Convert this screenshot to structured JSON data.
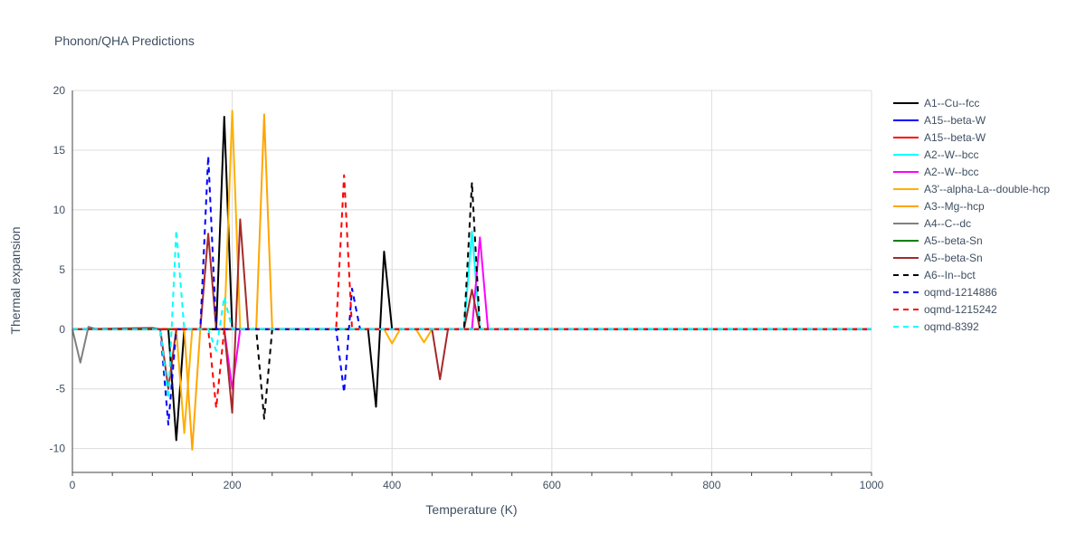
{
  "chart_data": {
    "type": "line",
    "title": "Phonon/QHA Predictions",
    "xlabel": "Temperature (K)",
    "ylabel": "Thermal expansion",
    "xlim": [
      0,
      1000
    ],
    "ylim": [
      -12,
      20
    ],
    "xticks": [
      0,
      200,
      400,
      600,
      800,
      1000
    ],
    "yticks": [
      -10,
      -5,
      0,
      5,
      10,
      15,
      20
    ],
    "grid": true,
    "legend_position": "right",
    "series": [
      {
        "name": "A1--Cu--fcc",
        "color": "#000000",
        "dash": "solid",
        "points": [
          [
            0,
            0
          ],
          [
            120,
            0
          ],
          [
            130,
            -9.3
          ],
          [
            140,
            0
          ],
          [
            180,
            0
          ],
          [
            190,
            17.8
          ],
          [
            200,
            0
          ],
          [
            370,
            0
          ],
          [
            380,
            -6.5
          ],
          [
            390,
            6.5
          ],
          [
            400,
            0
          ],
          [
            1000,
            0
          ]
        ]
      },
      {
        "name": "A15--beta-W",
        "color": "#0000ff",
        "dash": "solid",
        "points": [
          [
            0,
            0
          ],
          [
            1000,
            0
          ]
        ]
      },
      {
        "name": "A15--beta-W",
        "color": "#ff0000",
        "dash": "solid",
        "points": [
          [
            0,
            0
          ],
          [
            1000,
            0
          ]
        ]
      },
      {
        "name": "A2--W--bcc",
        "color": "#00ffff",
        "dash": "solid",
        "points": [
          [
            0,
            0
          ],
          [
            490,
            0
          ],
          [
            500,
            8.2
          ],
          [
            510,
            0
          ],
          [
            1000,
            0
          ]
        ]
      },
      {
        "name": "A2--W--bcc",
        "color": "#ff00ff",
        "dash": "solid",
        "points": [
          [
            0,
            0
          ],
          [
            190,
            0
          ],
          [
            200,
            -5.0
          ],
          [
            210,
            0
          ],
          [
            500,
            0
          ],
          [
            510,
            7.7
          ],
          [
            520,
            0
          ],
          [
            1000,
            0
          ]
        ]
      },
      {
        "name": "A3'--alpha-La--double-hcp",
        "color": "#ffb000",
        "dash": "solid",
        "points": [
          [
            0,
            0
          ],
          [
            130,
            0
          ],
          [
            140,
            -8.7
          ],
          [
            150,
            0
          ],
          [
            190,
            0
          ],
          [
            200,
            18.3
          ],
          [
            210,
            0
          ],
          [
            390,
            0
          ],
          [
            400,
            -1.2
          ],
          [
            410,
            0
          ],
          [
            430,
            0
          ],
          [
            440,
            -1.1
          ],
          [
            450,
            0
          ],
          [
            1000,
            0
          ]
        ]
      },
      {
        "name": "A3--Mg--hcp",
        "color": "#ffa500",
        "dash": "solid",
        "points": [
          [
            0,
            0
          ],
          [
            140,
            0
          ],
          [
            150,
            -10.1
          ],
          [
            160,
            0
          ],
          [
            230,
            0
          ],
          [
            240,
            18.0
          ],
          [
            250,
            0
          ],
          [
            1000,
            0
          ]
        ]
      },
      {
        "name": "A4--C--dc",
        "color": "#808080",
        "dash": "solid",
        "points": [
          [
            0,
            0
          ],
          [
            10,
            -2.8
          ],
          [
            20,
            0.2
          ],
          [
            30,
            0
          ],
          [
            1000,
            0
          ]
        ]
      },
      {
        "name": "A5--beta-Sn",
        "color": "#008000",
        "dash": "solid",
        "points": [
          [
            0,
            0
          ],
          [
            1000,
            0
          ]
        ]
      },
      {
        "name": "A5--beta-Sn",
        "color": "#a52a2a",
        "dash": "solid",
        "points": [
          [
            0,
            0
          ],
          [
            100,
            0.1
          ],
          [
            110,
            0
          ],
          [
            120,
            -5.0
          ],
          [
            130,
            0
          ],
          [
            160,
            0
          ],
          [
            170,
            8.0
          ],
          [
            180,
            0
          ],
          [
            190,
            0
          ],
          [
            200,
            -7.0
          ],
          [
            210,
            9.2
          ],
          [
            220,
            0
          ],
          [
            450,
            0
          ],
          [
            460,
            -4.2
          ],
          [
            470,
            0
          ],
          [
            490,
            0
          ],
          [
            500,
            3.3
          ],
          [
            510,
            0
          ],
          [
            1000,
            0
          ]
        ]
      },
      {
        "name": "A6--In--bct",
        "color": "#000000",
        "dash": "dash",
        "points": [
          [
            0,
            0
          ],
          [
            230,
            0
          ],
          [
            240,
            -7.5
          ],
          [
            250,
            0
          ],
          [
            490,
            0
          ],
          [
            500,
            12.3
          ],
          [
            510,
            0
          ],
          [
            1000,
            0
          ]
        ]
      },
      {
        "name": "oqmd-1214886",
        "color": "#0000ff",
        "dash": "dash",
        "points": [
          [
            0,
            0
          ],
          [
            110,
            0
          ],
          [
            120,
            -8.0
          ],
          [
            130,
            0
          ],
          [
            160,
            0
          ],
          [
            170,
            14.5
          ],
          [
            180,
            0
          ],
          [
            330,
            0
          ],
          [
            340,
            -5.3
          ],
          [
            350,
            3.4
          ],
          [
            360,
            0
          ],
          [
            1000,
            0
          ]
        ]
      },
      {
        "name": "oqmd-1215242",
        "color": "#ff0000",
        "dash": "dash",
        "points": [
          [
            0,
            0
          ],
          [
            170,
            0
          ],
          [
            180,
            -6.6
          ],
          [
            190,
            0
          ],
          [
            330,
            0
          ],
          [
            340,
            12.9
          ],
          [
            350,
            0
          ],
          [
            1000,
            0
          ]
        ]
      },
      {
        "name": "oqmd-8392",
        "color": "#00ffff",
        "dash": "dash",
        "points": [
          [
            0,
            0
          ],
          [
            110,
            0
          ],
          [
            120,
            -5.8
          ],
          [
            130,
            8.3
          ],
          [
            140,
            0
          ],
          [
            170,
            0
          ],
          [
            180,
            -1.8
          ],
          [
            190,
            2.7
          ],
          [
            200,
            0
          ],
          [
            1000,
            0
          ]
        ]
      }
    ]
  }
}
